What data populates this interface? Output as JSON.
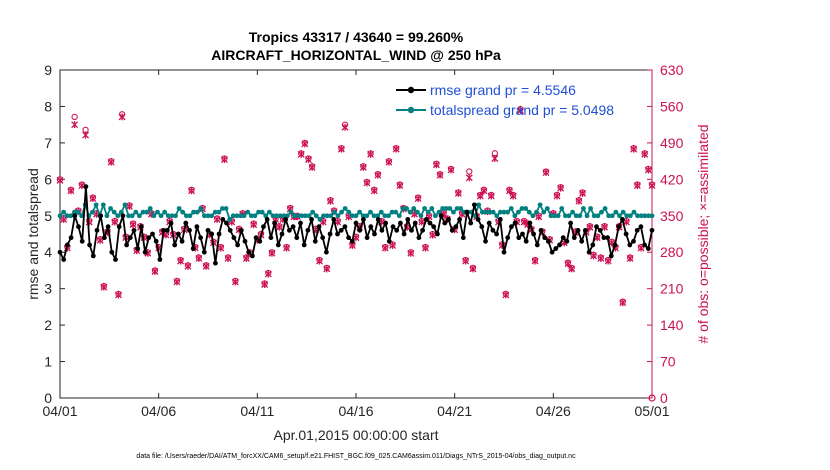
{
  "chart_data": {
    "type": "line",
    "title": "Tropics 43317 / 43640 = 99.260%",
    "subtitle": "AIRCRAFT_HORIZONTAL_WIND @ 250 hPa",
    "xlabel": "Apr.01,2015 00:00:00 start",
    "ylabel_left": "rmse and totalspread",
    "ylabel_right": "# of obs: o=possible; ×=assimilated",
    "xlim": [
      0,
      30
    ],
    "ylim_left": [
      0,
      9
    ],
    "ylim_right": [
      0,
      630
    ],
    "x_tick_labels": [
      "04/01",
      "04/06",
      "04/11",
      "04/16",
      "04/21",
      "04/26",
      "05/01"
    ],
    "y_left_ticks": [
      "0",
      "1",
      "2",
      "3",
      "4",
      "5",
      "6",
      "7",
      "8",
      "9"
    ],
    "y_right_ticks": [
      "0",
      "70",
      "140",
      "210",
      "280",
      "350",
      "420",
      "490",
      "560",
      "630"
    ],
    "legend": [
      "rmse grand pr = 4.5546",
      "totalspread grand pr = 5.0498"
    ],
    "legend_location": "top-right",
    "colors": {
      "rmse": "#000000",
      "spread": "#008080",
      "obs": "#cc1155",
      "axis_right": "#cc1155"
    },
    "series": [
      {
        "name": "rmse",
        "values": [
          4.0,
          3.8,
          4.2,
          4.4,
          5.0,
          4.7,
          4.3,
          5.8,
          4.2,
          3.9,
          4.6,
          5.0,
          4.4,
          4.7,
          4.0,
          3.8,
          4.7,
          5.0,
          4.2,
          4.4,
          4.6,
          4.1,
          4.7,
          4.0,
          4.4,
          4.5,
          4.3,
          3.8,
          4.6,
          4.6,
          4.8,
          4.2,
          4.5,
          4.3,
          4.8,
          4.6,
          4.1,
          4.7,
          4.4,
          4.0,
          4.6,
          4.5,
          3.7,
          4.5,
          4.9,
          4.8,
          4.6,
          4.4,
          4.2,
          4.6,
          4.3,
          4.0,
          3.9,
          4.4,
          4.3,
          4.7,
          4.9,
          4.4,
          4.8,
          4.2,
          4.5,
          4.9,
          4.6,
          4.7,
          4.4,
          4.8,
          4.2,
          4.6,
          4.9,
          4.3,
          4.7,
          4.4,
          4.0,
          4.5,
          4.9,
          4.5,
          4.6,
          4.7,
          4.4,
          4.3,
          4.8,
          4.6,
          4.9,
          4.4,
          4.7,
          4.5,
          4.9,
          4.6,
          4.8,
          4.3,
          4.7,
          4.6,
          4.8,
          4.5,
          4.9,
          4.6,
          4.8,
          4.4,
          4.6,
          4.9,
          4.8,
          4.7,
          4.5,
          5.0,
          4.8,
          4.9,
          4.6,
          4.7,
          4.9,
          4.4,
          5.1,
          4.8,
          5.3,
          4.9,
          4.7,
          4.3,
          4.8,
          4.6,
          4.5,
          4.9,
          4.0,
          4.4,
          4.7,
          4.8,
          4.4,
          4.5,
          4.3,
          4.8,
          4.5,
          4.2,
          4.6,
          4.4,
          4.3,
          4.0,
          4.1,
          4.2,
          4.4,
          4.3,
          4.8,
          4.4,
          4.6,
          4.3,
          4.6,
          4.0,
          4.2,
          4.7,
          4.6,
          4.4,
          4.4,
          3.9,
          4.2,
          4.7,
          4.9,
          4.5,
          4.2,
          4.3,
          4.6,
          4.7,
          4.2,
          4.1,
          4.6
        ]
      },
      {
        "name": "totalspread",
        "values": [
          5.0,
          5.1,
          5.0,
          5.0,
          5.1,
          5.1,
          5.0,
          5.3,
          5.0,
          5.1,
          5.3,
          5.0,
          5.3,
          5.0,
          5.2,
          5.1,
          5.0,
          5.1,
          5.3,
          5.0,
          5.0,
          5.1,
          5.0,
          5.1,
          5.1,
          5.2,
          5.0,
          5.1,
          5.0,
          5.1,
          5.0,
          5.0,
          5.0,
          5.2,
          5.1,
          5.0,
          5.0,
          5.1,
          5.1,
          5.2,
          5.0,
          5.0,
          5.0,
          5.1,
          5.1,
          5.2,
          5.2,
          4.9,
          5.0,
          5.0,
          5.0,
          5.0,
          5.1,
          5.0,
          5.0,
          5.1,
          5.1,
          5.0,
          5.1,
          5.0,
          5.0,
          5.0,
          5.0,
          5.0,
          5.1,
          5.0,
          5.0,
          5.0,
          5.0,
          5.0,
          5.1,
          5.0,
          4.9,
          5.0,
          5.0,
          5.0,
          5.1,
          5.0,
          5.1,
          5.2,
          5.1,
          5.0,
          5.0,
          5.1,
          5.0,
          5.0,
          5.1,
          5.0,
          5.0,
          5.1,
          5.0,
          5.0,
          5.1,
          5.1,
          5.0,
          5.2,
          5.2,
          5.1,
          5.2,
          5.1,
          5.0,
          5.2,
          5.1,
          5.2,
          5.0,
          5.1,
          5.2,
          5.2,
          5.2,
          5.1,
          5.2,
          5.2,
          5.1,
          5.1,
          5.1,
          5.0,
          5.3,
          5.1,
          5.1,
          5.1,
          5.1,
          5.0,
          5.1,
          5.1,
          5.1,
          5.2,
          5.0,
          5.1,
          5.2,
          5.2,
          5.1,
          5.0,
          5.1,
          5.3,
          5.1,
          5.2,
          5.0,
          5.0,
          5.0,
          5.2,
          5.0,
          5.0,
          5.1,
          5.0,
          5.0,
          5.2,
          5.0,
          5.2,
          5.0,
          5.0,
          5.1,
          5.2,
          5.0,
          5.0,
          5.1,
          5.0,
          5.1,
          5.0,
          5.0,
          5.1,
          5.0,
          5.0,
          5.0,
          5.0,
          5.0
        ]
      },
      {
        "name": "obs_possible",
        "values": [
          420,
          345,
          290,
          400,
          540,
          360,
          410,
          515,
          340,
          385,
          355,
          305,
          215,
          320,
          455,
          340,
          200,
          545,
          310,
          370,
          335,
          285,
          330,
          310,
          280,
          355,
          245,
          290,
          320,
          315,
          340,
          315,
          225,
          265,
          325,
          255,
          400,
          290,
          270,
          365,
          255,
          315,
          300,
          345,
          290,
          460,
          270,
          340,
          225,
          325,
          355,
          270,
          280,
          335,
          305,
          315,
          220,
          240,
          280,
          345,
          330,
          345,
          290,
          365,
          350,
          350,
          470,
          490,
          460,
          445,
          325,
          265,
          340,
          250,
          380,
          360,
          340,
          480,
          525,
          350,
          295,
          310,
          330,
          445,
          415,
          470,
          400,
          430,
          340,
          290,
          455,
          295,
          480,
          410,
          365,
          330,
          280,
          355,
          385,
          340,
          290,
          350,
          315,
          450,
          430,
          355,
          345,
          440,
          325,
          395,
          355,
          265,
          435,
          250,
          350,
          390,
          400,
          360,
          390,
          470,
          340,
          295,
          200,
          400,
          390,
          340,
          555,
          340,
          335,
          325,
          265,
          350,
          320,
          435,
          305,
          355,
          390,
          405,
          300,
          260,
          250,
          320,
          380,
          395,
          320,
          330,
          275,
          310,
          270,
          330,
          265,
          300,
          290,
          330,
          185,
          340,
          270,
          480,
          410,
          290,
          470,
          440,
          410
        ]
      },
      {
        "name": "obs_assimilated",
        "values": [
          418,
          343,
          288,
          398,
          525,
          358,
          408,
          505,
          338,
          383,
          353,
          303,
          213,
          318,
          453,
          338,
          198,
          540,
          308,
          368,
          333,
          283,
          328,
          308,
          278,
          353,
          243,
          288,
          318,
          313,
          338,
          313,
          223,
          263,
          323,
          253,
          398,
          288,
          268,
          363,
          253,
          313,
          298,
          343,
          288,
          458,
          268,
          338,
          223,
          323,
          353,
          268,
          278,
          333,
          303,
          313,
          218,
          238,
          278,
          343,
          328,
          343,
          288,
          363,
          348,
          348,
          468,
          488,
          458,
          443,
          323,
          263,
          338,
          248,
          378,
          358,
          338,
          478,
          520,
          348,
          293,
          308,
          328,
          443,
          413,
          468,
          398,
          428,
          338,
          288,
          453,
          293,
          478,
          408,
          363,
          328,
          278,
          353,
          383,
          338,
          288,
          348,
          313,
          448,
          428,
          353,
          343,
          438,
          323,
          393,
          353,
          263,
          423,
          248,
          348,
          388,
          398,
          358,
          388,
          460,
          338,
          293,
          198,
          398,
          388,
          338,
          552,
          338,
          333,
          323,
          263,
          348,
          318,
          433,
          303,
          353,
          388,
          403,
          298,
          258,
          248,
          318,
          378,
          393,
          318,
          328,
          273,
          308,
          268,
          328,
          263,
          298,
          288,
          328,
          183,
          338,
          268,
          478,
          408,
          288,
          468,
          438,
          408
        ]
      }
    ],
    "footer": "data file: /Users/raeder/DAI/ATM_forcXX/CAM6_setup/f.e21.FHIST_BGC.f09_025.CAM6assim.011/Diags_NTrS_2015-04/obs_diag_output.nc"
  }
}
